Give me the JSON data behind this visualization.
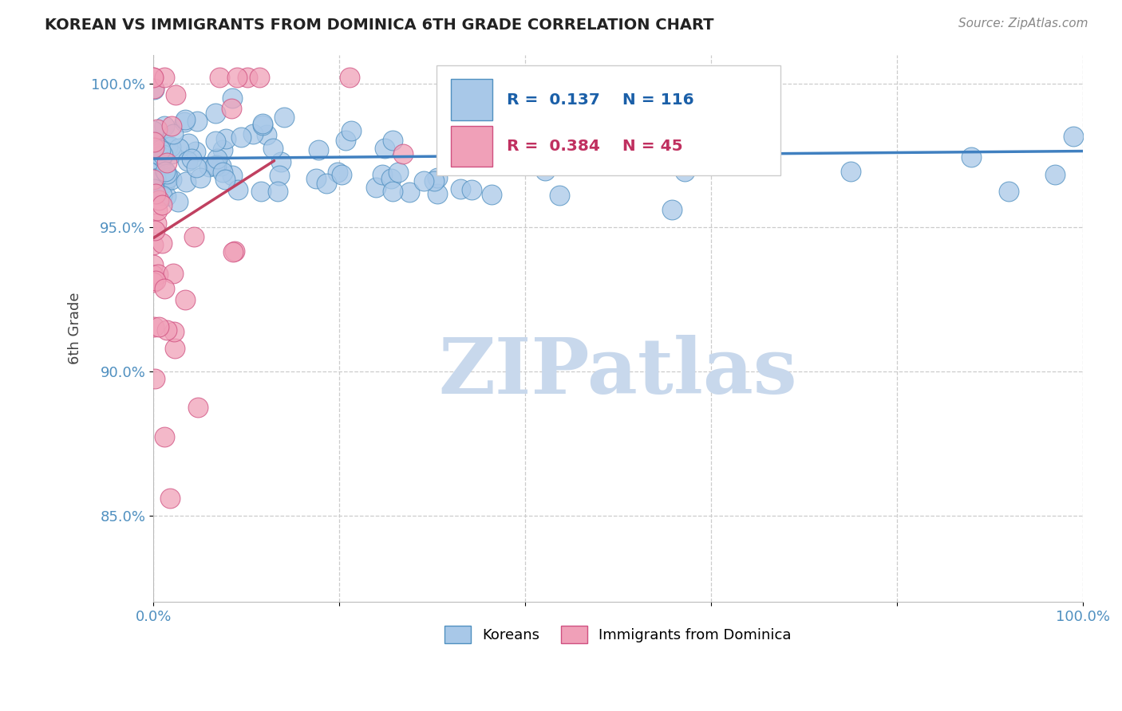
{
  "title": "KOREAN VS IMMIGRANTS FROM DOMINICA 6TH GRADE CORRELATION CHART",
  "source_text": "Source: ZipAtlas.com",
  "ylabel": "6th Grade",
  "xlim": [
    0.0,
    1.0
  ],
  "ylim": [
    0.82,
    1.01
  ],
  "yticks": [
    0.85,
    0.9,
    0.95,
    1.0
  ],
  "ytick_labels": [
    "85.0%",
    "90.0%",
    "95.0%",
    "100.0%"
  ],
  "xticks": [
    0.0,
    0.2,
    0.4,
    0.6,
    0.8,
    1.0
  ],
  "xtick_labels": [
    "0.0%",
    "",
    "",
    "",
    "",
    "100.0%"
  ],
  "korean_R": 0.137,
  "korean_N": 116,
  "dominica_R": 0.384,
  "dominica_N": 45,
  "blue_color": "#A8C8E8",
  "pink_color": "#F0A0B8",
  "blue_edge_color": "#5090C0",
  "pink_edge_color": "#D05080",
  "blue_line_color": "#4080C0",
  "pink_line_color": "#C04060",
  "tick_color": "#5090C0",
  "watermark": "ZIPatlas",
  "watermark_color": "#C8D8EC",
  "legend_blue_label": "Koreans",
  "legend_pink_label": "Immigrants from Dominica",
  "grid_color": "#CCCCCC",
  "background_color": "#FFFFFF",
  "title_color": "#222222",
  "source_color": "#888888"
}
